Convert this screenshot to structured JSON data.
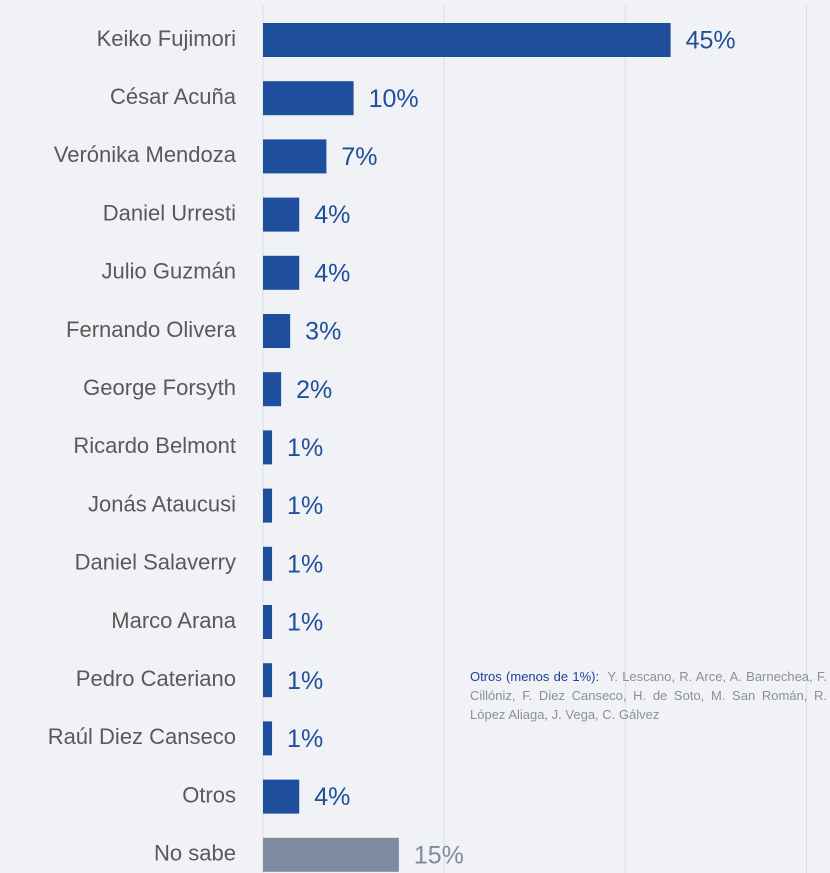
{
  "chart_data": {
    "type": "barh",
    "categories": [
      "Keiko Fujimori",
      "César Acuña",
      "Verónika Mendoza",
      "Daniel Urresti",
      "Julio Guzmán",
      "Fernando Olivera",
      "George Forsyth",
      "Ricardo Belmont",
      "Jonás Ataucusi",
      "Daniel Salaverry",
      "Marco Arana",
      "Pedro Cateriano",
      "Raúl Diez Canseco",
      "Otros",
      "No sabe"
    ],
    "values": [
      45,
      10,
      7,
      4,
      4,
      3,
      2,
      1,
      1,
      1,
      1,
      1,
      1,
      4,
      15
    ],
    "value_labels": [
      "45%",
      "10%",
      "7%",
      "4%",
      "4%",
      "3%",
      "2%",
      "1%",
      "1%",
      "1%",
      "1%",
      "1%",
      "1%",
      "4%",
      "15%"
    ],
    "colors": [
      "#1f4e9c",
      "#1f4e9c",
      "#1f4e9c",
      "#1f4e9c",
      "#1f4e9c",
      "#1f4e9c",
      "#1f4e9c",
      "#1f4e9c",
      "#1f4e9c",
      "#1f4e9c",
      "#1f4e9c",
      "#1f4e9c",
      "#1f4e9c",
      "#1f4e9c",
      "#7f8ba0"
    ],
    "xlim": [
      0,
      62.6
    ],
    "xticks": [
      0,
      20,
      40,
      60
    ],
    "grid": true,
    "annotation": {
      "heading": "Otros (menos de 1%):",
      "text": "Y. Lescano, R. Arce, A. Barnechea, F. Cillóniz, F. Diez Canseco, H. de Soto, M. San Román, R. López Aliaga, J. Vega, C. Gálvez"
    }
  }
}
